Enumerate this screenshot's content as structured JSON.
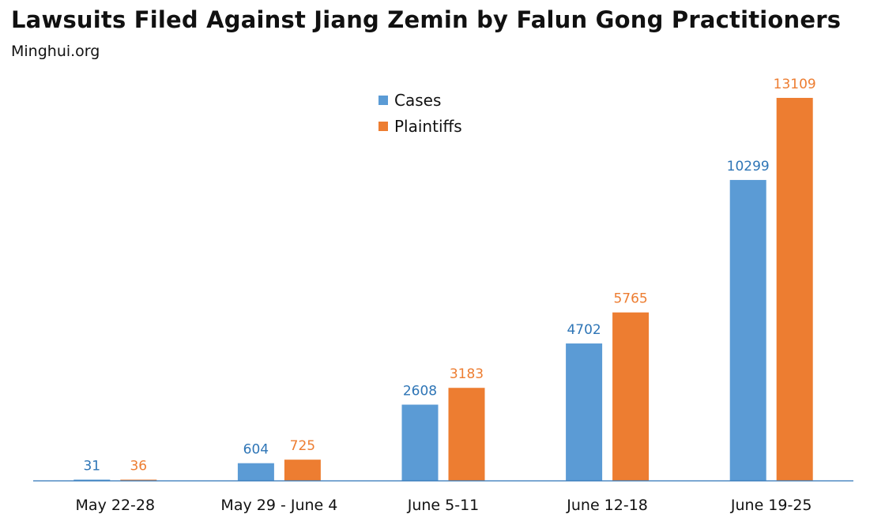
{
  "title": "Lawsuits Filed Against Jiang Zemin by Falun Gong Practitioners",
  "subtitle": "Minghui.org",
  "chart_data": {
    "type": "bar",
    "categories": [
      "May 22-28",
      "May 29 - June 4",
      "June 5-11",
      "June 12-18",
      "June 19-25"
    ],
    "series": [
      {
        "name": "Cases",
        "color": "#5b9bd5",
        "label_color": "#2e75b6",
        "values": [
          31,
          604,
          2608,
          4702,
          10299
        ]
      },
      {
        "name": "Plaintiffs",
        "color": "#ed7d31",
        "label_color": "#ed7d31",
        "values": [
          36,
          725,
          3183,
          5765,
          13109
        ]
      }
    ],
    "xlabel": "",
    "ylabel": "",
    "ylim": [
      0,
      13500
    ],
    "grid": false,
    "legend": "top-center",
    "data_labels": true,
    "axis_color": "#2e75b6"
  }
}
